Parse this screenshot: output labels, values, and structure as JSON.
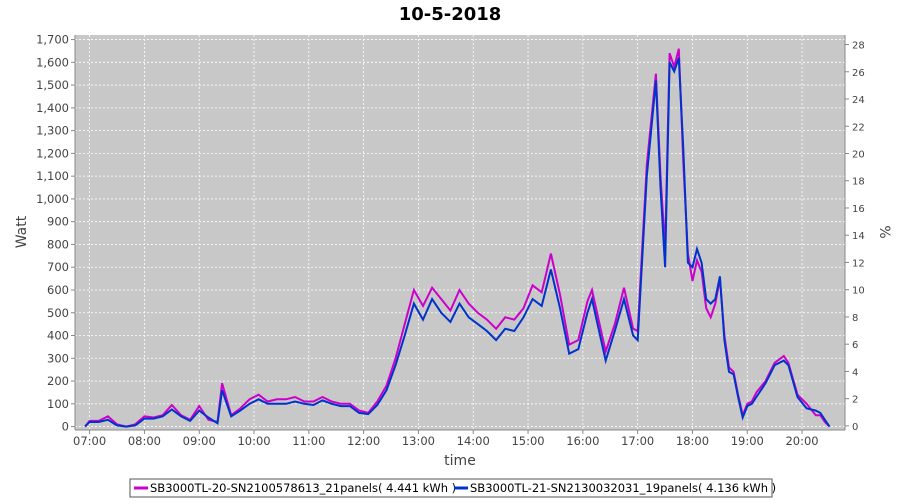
{
  "chart_data": {
    "type": "line",
    "title": "10-5-2018",
    "x_label": "time",
    "y_label": "Watt",
    "y2_label": "%",
    "x": [
      "06:55",
      "07:00",
      "07:10",
      "07:20",
      "07:30",
      "07:40",
      "07:50",
      "08:00",
      "08:10",
      "08:20",
      "08:30",
      "08:40",
      "08:50",
      "09:00",
      "09:10",
      "09:20",
      "09:25",
      "09:35",
      "09:45",
      "09:55",
      "10:05",
      "10:15",
      "10:25",
      "10:35",
      "10:45",
      "10:55",
      "11:05",
      "11:15",
      "11:25",
      "11:35",
      "11:45",
      "11:55",
      "12:05",
      "12:15",
      "12:25",
      "12:35",
      "12:45",
      "12:55",
      "13:05",
      "13:15",
      "13:25",
      "13:35",
      "13:45",
      "13:55",
      "14:05",
      "14:15",
      "14:25",
      "14:35",
      "14:45",
      "14:55",
      "15:05",
      "15:15",
      "15:25",
      "15:35",
      "15:45",
      "15:55",
      "16:05",
      "16:10",
      "16:20",
      "16:25",
      "16:35",
      "16:45",
      "16:55",
      "17:00",
      "17:10",
      "17:20",
      "17:25",
      "17:30",
      "17:35",
      "17:40",
      "17:45",
      "17:50",
      "17:55",
      "18:00",
      "18:05",
      "18:10",
      "18:15",
      "18:20",
      "18:25",
      "18:30",
      "18:35",
      "18:40",
      "18:45",
      "18:50",
      "18:55",
      "19:00",
      "19:05",
      "19:10",
      "19:20",
      "19:30",
      "19:40",
      "19:45",
      "19:55",
      "20:05",
      "20:15",
      "20:20",
      "20:25",
      "20:30"
    ],
    "series": [
      {
        "name": "SB3000TL-20-SN2100578613_21panels( 4.441 kWh )",
        "color": "#cc00cc",
        "values": [
          0,
          25,
          25,
          45,
          10,
          0,
          10,
          45,
          40,
          50,
          95,
          50,
          30,
          90,
          30,
          20,
          190,
          50,
          80,
          120,
          140,
          110,
          120,
          120,
          130,
          110,
          110,
          130,
          110,
          100,
          100,
          70,
          60,
          110,
          180,
          300,
          450,
          600,
          530,
          610,
          560,
          510,
          600,
          540,
          500,
          470,
          430,
          480,
          470,
          520,
          620,
          590,
          760,
          580,
          360,
          380,
          550,
          600,
          420,
          330,
          450,
          610,
          430,
          420,
          1150,
          1550,
          1100,
          780,
          1640,
          1580,
          1660,
          1160,
          760,
          640,
          730,
          680,
          520,
          480,
          540,
          650,
          400,
          260,
          240,
          140,
          50,
          100,
          110,
          150,
          200,
          280,
          310,
          280,
          140,
          100,
          50,
          50,
          20,
          0
        ]
      },
      {
        "name": "SB3000TL-21-SN2130032031_19panels( 4.136 kWh )",
        "color": "#0033cc",
        "values": [
          0,
          20,
          20,
          30,
          5,
          0,
          5,
          35,
          35,
          45,
          75,
          45,
          25,
          70,
          40,
          15,
          160,
          45,
          70,
          100,
          120,
          100,
          100,
          100,
          110,
          100,
          95,
          115,
          100,
          90,
          90,
          60,
          55,
          95,
          160,
          270,
          400,
          540,
          470,
          560,
          500,
          460,
          540,
          480,
          450,
          420,
          380,
          430,
          420,
          480,
          560,
          530,
          690,
          520,
          320,
          340,
          500,
          560,
          380,
          290,
          420,
          560,
          400,
          380,
          1100,
          1520,
          1050,
          700,
          1600,
          1560,
          1620,
          1220,
          720,
          700,
          780,
          720,
          560,
          540,
          560,
          660,
          380,
          240,
          230,
          130,
          40,
          90,
          100,
          130,
          190,
          270,
          290,
          270,
          130,
          80,
          70,
          60,
          30,
          0
        ]
      }
    ],
    "xlim": [
      "06:44",
      "20:47"
    ],
    "xticks": [
      "07:00",
      "08:00",
      "09:00",
      "10:00",
      "11:00",
      "12:00",
      "13:00",
      "14:00",
      "15:00",
      "16:00",
      "17:00",
      "18:00",
      "19:00",
      "20:00"
    ],
    "ylim": [
      -15,
      1720
    ],
    "yticks": [
      0,
      100,
      200,
      300,
      400,
      500,
      600,
      700,
      800,
      900,
      {
        "value": 1000,
        "label": "1,000"
      },
      {
        "value": 1100,
        "label": "1,100"
      },
      {
        "value": 1200,
        "label": "1,200"
      },
      {
        "value": 1300,
        "label": "1,300"
      },
      {
        "value": 1400,
        "label": "1,400"
      },
      {
        "value": 1500,
        "label": "1,500"
      },
      {
        "value": 1600,
        "label": "1,600"
      },
      {
        "value": 1700,
        "label": "1,700"
      }
    ],
    "y2lim": [
      -0.3,
      28.7
    ],
    "y2ticks": [
      0,
      2,
      4,
      6,
      8,
      10,
      12,
      14,
      16,
      18,
      20,
      22,
      24,
      26,
      28
    ],
    "grid": true
  }
}
